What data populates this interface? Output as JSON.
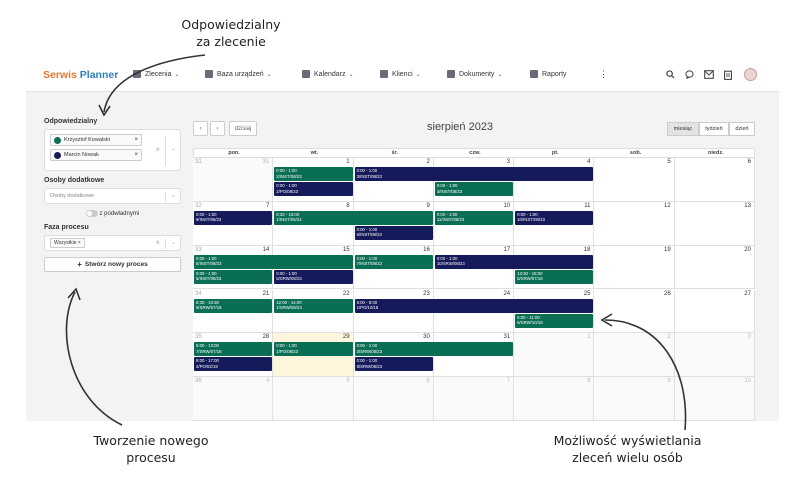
{
  "annotations": {
    "top": [
      "Odpowiedzialny",
      "za zlecenie"
    ],
    "bottom_left": [
      "Tworzenie nowego",
      "procesu"
    ],
    "bottom_right": [
      "Możliwość wyświetlania",
      "zleceń wielu osób"
    ]
  },
  "nav": {
    "logo_part1": "Serwis",
    "logo_part2": "Planner",
    "items": [
      {
        "label": "Zlecenia",
        "icon": "clipboard-icon"
      },
      {
        "label": "Baza urządzeń",
        "icon": "car-icon"
      },
      {
        "label": "Kalendarz",
        "icon": "calendar-icon"
      },
      {
        "label": "Klienci",
        "icon": "user-icon"
      },
      {
        "label": "Dokumenty",
        "icon": "document-icon"
      },
      {
        "label": "Raporty",
        "icon": "chart-icon"
      }
    ]
  },
  "sidebar": {
    "responsible_label": "Odpowiedzialny",
    "responsible": [
      {
        "name": "Krzysztof Kowalski",
        "color": "#0a6e55"
      },
      {
        "name": "Marcin Nowak",
        "color": "#141a5a"
      }
    ],
    "additional_label": "Osoby dodatkowe",
    "additional_placeholder": "Osoby dodatkowe",
    "subordinates_label": "z podwładnymi",
    "phase_label": "Faza procesu",
    "phase_value": "Wszystkie",
    "create_button": "Stwórz nowy proces"
  },
  "calendar": {
    "today_label": "dzisiaj",
    "title": "sierpień 2023",
    "views": [
      "miesiąc",
      "tydzień",
      "dzień"
    ],
    "active_view": "miesiąc",
    "weekdays": [
      "pon.",
      "wt.",
      "śr.",
      "czw.",
      "pt.",
      "sob.",
      "niedz."
    ],
    "weeks": [
      {
        "week": "31",
        "days": [
          {
            "d": "31",
            "other": true
          },
          {
            "d": "1"
          },
          {
            "d": "2"
          },
          {
            "d": "3"
          },
          {
            "d": "4"
          },
          {
            "d": "5"
          },
          {
            "d": "6"
          }
        ]
      },
      {
        "week": "32",
        "days": [
          {
            "d": "7"
          },
          {
            "d": "8"
          },
          {
            "d": "9"
          },
          {
            "d": "10"
          },
          {
            "d": "11"
          },
          {
            "d": "12"
          },
          {
            "d": "13"
          }
        ]
      },
      {
        "week": "33",
        "days": [
          {
            "d": "14"
          },
          {
            "d": "15"
          },
          {
            "d": "16"
          },
          {
            "d": "17"
          },
          {
            "d": "18"
          },
          {
            "d": "19"
          },
          {
            "d": "20"
          }
        ]
      },
      {
        "week": "34",
        "days": [
          {
            "d": "21"
          },
          {
            "d": "22"
          },
          {
            "d": "23"
          },
          {
            "d": "24"
          },
          {
            "d": "25"
          },
          {
            "d": "26"
          },
          {
            "d": "27"
          }
        ]
      },
      {
        "week": "35",
        "days": [
          {
            "d": "28"
          },
          {
            "d": "29",
            "today": true
          },
          {
            "d": "30"
          },
          {
            "d": "31"
          },
          {
            "d": "1",
            "other": true
          },
          {
            "d": "2",
            "other": true
          },
          {
            "d": "3",
            "other": true
          }
        ]
      },
      {
        "week": "36",
        "days": [
          {
            "d": "4",
            "other": true
          },
          {
            "d": "5",
            "other": true
          },
          {
            "d": "6",
            "other": true
          },
          {
            "d": "7",
            "other": true
          },
          {
            "d": "8",
            "other": true
          },
          {
            "d": "9",
            "other": true
          },
          {
            "d": "10",
            "other": true
          }
        ]
      }
    ],
    "events": [
      {
        "week": 0,
        "start": 1,
        "span": 1,
        "slot": 0,
        "color": "g",
        "time": "0:00 - 1:00",
        "code": "2/INST/08/23"
      },
      {
        "week": 0,
        "start": 1,
        "span": 1,
        "slot": 1,
        "color": "n",
        "time": "0:00 - 1:00",
        "code": "2/PO/08/23"
      },
      {
        "week": 0,
        "start": 2,
        "span": 3,
        "slot": 0,
        "color": "n",
        "time": "0:00 - 1:00",
        "code": "3/INST/08/23"
      },
      {
        "week": 0,
        "start": 3,
        "span": 1,
        "slot": 1,
        "color": "g",
        "time": "0:00 - 1:00",
        "code": "4/INST/08/23"
      },
      {
        "week": 1,
        "start": 0,
        "span": 1,
        "slot": 0,
        "color": "n",
        "time": "0:00 - 1:00",
        "code": "9/INST/08/23"
      },
      {
        "week": 1,
        "start": 1,
        "span": 2,
        "slot": 0,
        "color": "g",
        "time": "8:30 - 16:00",
        "code": "1/INST/05/22"
      },
      {
        "week": 1,
        "start": 2,
        "span": 1,
        "slot": 1,
        "color": "n",
        "time": "0:00 - 1:00",
        "code": "6/INST/08/23"
      },
      {
        "week": 1,
        "start": 3,
        "span": 1,
        "slot": 0,
        "color": "g",
        "time": "0:00 - 1:00",
        "code": "11/INST/08/23"
      },
      {
        "week": 1,
        "start": 4,
        "span": 1,
        "slot": 0,
        "color": "n",
        "time": "0:00 - 1:00",
        "code": "10/INST/08/23"
      },
      {
        "week": 2,
        "start": 0,
        "span": 2,
        "slot": 0,
        "color": "g",
        "time": "0:00 - 1:00",
        "code": "5/INST/08/23"
      },
      {
        "week": 2,
        "start": 0,
        "span": 1,
        "slot": 1,
        "color": "g",
        "time": "0:00 - 1:00",
        "code": "5/INST/08/23"
      },
      {
        "week": 2,
        "start": 1,
        "span": 1,
        "slot": 1,
        "color": "n",
        "time": "0:00 - 1:00",
        "code": "5/SRW/08/23"
      },
      {
        "week": 2,
        "start": 2,
        "span": 1,
        "slot": 0,
        "color": "g",
        "time": "0:00 - 1:00",
        "code": "7/INST/08/23"
      },
      {
        "week": 2,
        "start": 3,
        "span": 2,
        "slot": 0,
        "color": "n",
        "time": "0:00 - 1:00",
        "code": "10/SRW/08/23"
      },
      {
        "week": 2,
        "start": 4,
        "span": 1,
        "slot": 1,
        "color": "g",
        "time": "13:30 - 15:00",
        "code": "5/SRW/07/18"
      },
      {
        "week": 3,
        "start": 0,
        "span": 1,
        "slot": 0,
        "color": "g",
        "time": "8:30 - 10:30",
        "code": "9/SRW/07/18"
      },
      {
        "week": 3,
        "start": 1,
        "span": 1,
        "slot": 0,
        "color": "g",
        "time": "12:00 - 14:00",
        "code": "1/SRW/08/23"
      },
      {
        "week": 3,
        "start": 2,
        "span": 3,
        "slot": 0,
        "color": "n",
        "time": "6:00 - 8:00",
        "code": "1/PO/10/18"
      },
      {
        "week": 3,
        "start": 4,
        "span": 1,
        "slot": 1,
        "color": "g",
        "time": "6:00 - 11:00",
        "code": "6/SRW/10/18"
      },
      {
        "week": 4,
        "start": 0,
        "span": 1,
        "slot": 0,
        "color": "g",
        "time": "6:00 - 13:00",
        "code": "7/SRW/07/18"
      },
      {
        "week": 4,
        "start": 0,
        "span": 1,
        "slot": 1,
        "color": "n",
        "time": "8:00 - 17:00",
        "code": "2/PO/02/19"
      },
      {
        "week": 4,
        "start": 1,
        "span": 1,
        "slot": 0,
        "color": "g",
        "time": "0:00 - 1:00",
        "code": "1/PO/08/23"
      },
      {
        "week": 4,
        "start": 2,
        "span": 2,
        "slot": 0,
        "color": "g",
        "time": "0:00 - 1:00",
        "code": "3/SRW/08/23"
      },
      {
        "week": 4,
        "start": 2,
        "span": 1,
        "slot": 1,
        "color": "n",
        "time": "0:00 - 1:00",
        "code": "8/SRW/08/23"
      }
    ]
  }
}
